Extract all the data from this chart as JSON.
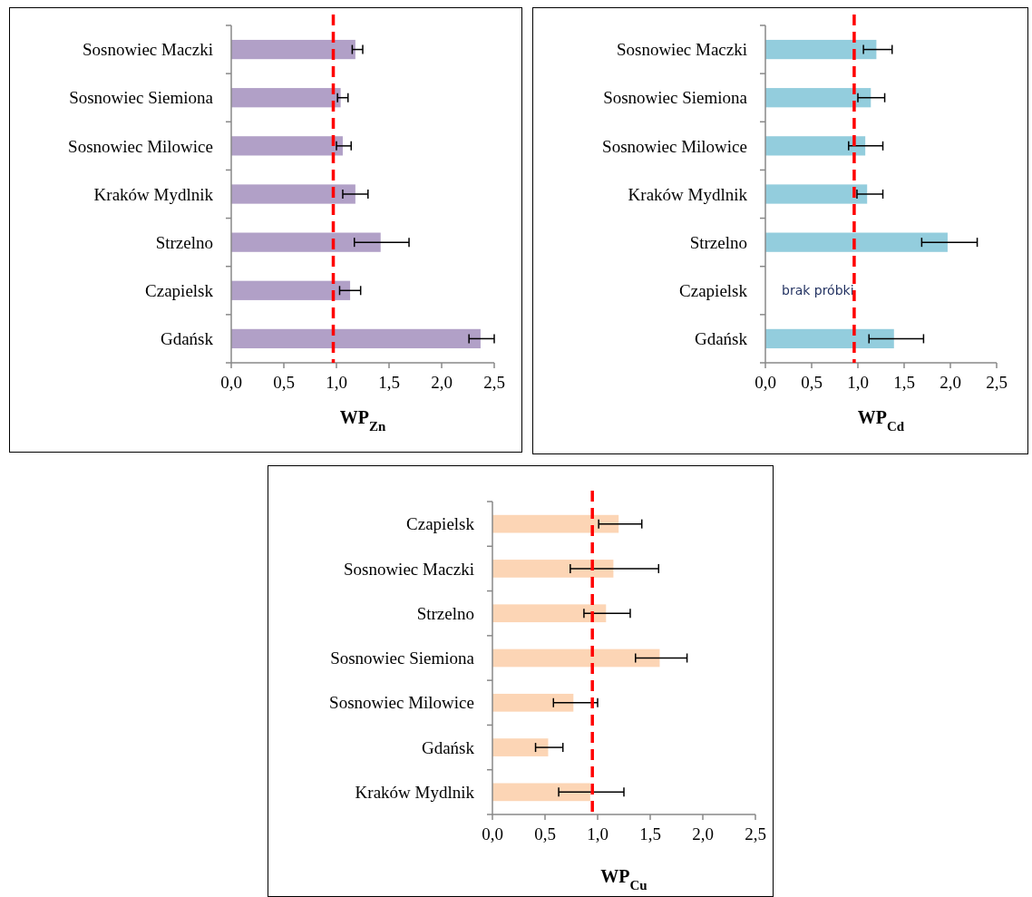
{
  "chart_data": [
    {
      "type": "bar",
      "orientation": "horizontal",
      "xlabel": "WP$_{Zn}$",
      "categories": [
        "Sosnowiec Maczki",
        "Sosnowiec Siemiona",
        "Sosnowiec Milowice",
        "Kraków Mydlnik",
        "Strzelno",
        "Czapielsk",
        "Gdańsk"
      ],
      "values": [
        1.18,
        1.04,
        1.06,
        1.18,
        1.42,
        1.13,
        2.37
      ],
      "errors": [
        [
          1.15,
          1.25
        ],
        [
          1.01,
          1.11
        ],
        [
          1.0,
          1.14
        ],
        [
          1.06,
          1.3
        ],
        [
          1.17,
          1.69
        ],
        [
          1.03,
          1.23
        ],
        [
          2.26,
          2.5
        ]
      ],
      "color": "#b1a0c7",
      "xlim": [
        0,
        2.5
      ],
      "xticks": [
        {
          "value": 0,
          "label": "0,0"
        },
        {
          "value": 0.5,
          "label": "0,5"
        },
        {
          "value": 1,
          "label": "1,0"
        },
        {
          "value": 1.5,
          "label": "1,5"
        },
        {
          "value": 2,
          "label": "2,0"
        },
        {
          "value": 2.5,
          "label": "2,5"
        }
      ],
      "ref_lines": [
        {
          "axis": "x",
          "value": 0.97,
          "color": "#ff0000",
          "line_style": "dashed"
        }
      ]
    },
    {
      "type": "bar",
      "orientation": "horizontal",
      "xlabel": "WP$_{Cd}$",
      "categories": [
        "Sosnowiec Maczki",
        "Sosnowiec Siemiona",
        "Sosnowiec Milowice",
        "Kraków Mydlnik",
        "Strzelno",
        "Czapielsk",
        "Gdańsk"
      ],
      "values": [
        1.2,
        1.14,
        1.08,
        1.1,
        1.97,
        null,
        1.39
      ],
      "errors": [
        [
          1.06,
          1.37
        ],
        [
          1.0,
          1.29
        ],
        [
          0.9,
          1.27
        ],
        [
          0.99,
          1.27
        ],
        [
          1.69,
          2.29
        ],
        null,
        [
          1.12,
          1.71
        ]
      ],
      "color": "#93cddd",
      "xlim": [
        0,
        2.5
      ],
      "xticks": [
        {
          "value": 0,
          "label": "0,0"
        },
        {
          "value": 0.5,
          "label": "0,5"
        },
        {
          "value": 1,
          "label": "1,0"
        },
        {
          "value": 1.5,
          "label": "1,5"
        },
        {
          "value": 2,
          "label": "2,0"
        },
        {
          "value": 2.5,
          "label": "2,5"
        }
      ],
      "ref_lines": [
        {
          "axis": "x",
          "value": 0.96,
          "color": "#ff0000",
          "line_style": "dashed"
        }
      ],
      "annotations": [
        "brak próbki"
      ]
    },
    {
      "type": "bar",
      "orientation": "horizontal",
      "xlabel": "WP$_{Cu}$",
      "categories": [
        "Czapielsk",
        "Sosnowiec Maczki",
        "Strzelno",
        "Sosnowiec Siemiona",
        "Sosnowiec Milowice",
        "Gdańsk",
        "Kraków Mydlnik"
      ],
      "values": [
        1.2,
        1.15,
        1.08,
        1.59,
        0.77,
        0.53,
        0.93
      ],
      "errors": [
        [
          1.01,
          1.42
        ],
        [
          0.74,
          1.58
        ],
        [
          0.87,
          1.31
        ],
        [
          1.36,
          1.85
        ],
        [
          0.58,
          1.0
        ],
        [
          0.41,
          0.67
        ],
        [
          0.63,
          1.25
        ]
      ],
      "color": "#fcd5b5",
      "xlim": [
        0,
        2.5
      ],
      "xticks": [
        {
          "value": 0,
          "label": "0,0"
        },
        {
          "value": 0.5,
          "label": "0,5"
        },
        {
          "value": 1,
          "label": "1,0"
        },
        {
          "value": 1.5,
          "label": "1,5"
        },
        {
          "value": 2,
          "label": "2,0"
        },
        {
          "value": 2.5,
          "label": "2,5"
        }
      ],
      "ref_lines": [
        {
          "axis": "x",
          "value": 0.95,
          "color": "#ff0000",
          "line_style": "dashed"
        }
      ]
    }
  ]
}
